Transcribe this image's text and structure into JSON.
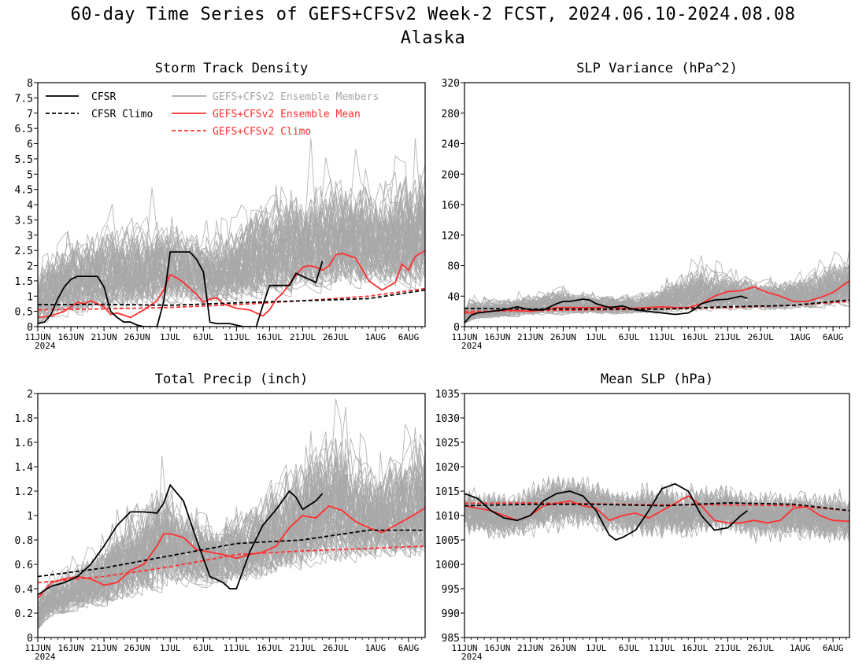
{
  "page": {
    "title_line1": "60-day Time Series of GEFS+CFSv2 Week-2 FCST, 2024.06.10-2024.08.08",
    "title_line2": "Alaska"
  },
  "x_axis": {
    "tick_labels": [
      "11JUN",
      "16JUN",
      "21JUN",
      "26JUN",
      "1JUL",
      "6JUL",
      "11JUL",
      "16JUL",
      "21JUL",
      "26JUL",
      "1AUG",
      "6AUG"
    ],
    "tick_days": [
      0,
      5,
      10,
      15,
      20,
      25,
      30,
      35,
      40,
      45,
      51,
      56
    ],
    "year_label": "2024",
    "day_range": [
      0,
      58.5
    ]
  },
  "legend": {
    "cfsr": "CFSR",
    "cfsr_climo": "CFSR Climo",
    "members": "GEFS+CFSv2 Ensemble Members",
    "ens_mean": "GEFS+CFSv2 Ensemble Mean",
    "gefs_climo": "GEFS+CFSv2 Climo"
  },
  "colors": {
    "cfsr": "#000000",
    "members": "#a8a8a8",
    "ens_mean": "#ff3030",
    "gefs_climo": "#ff3030"
  },
  "chart_data": [
    {
      "type": "line",
      "title": "Storm Track Density",
      "ylim": [
        0,
        8
      ],
      "yticks": [
        "0",
        "0.5",
        "1",
        "1.5",
        "2",
        "2.5",
        "3",
        "3.5",
        "4",
        "4.5",
        "5",
        "5.5",
        "6",
        "6.5",
        "7",
        "7.5",
        "8"
      ],
      "member_spread": {
        "base": [
          0.15,
          0.2,
          0.3,
          0.45,
          0.5,
          0.55,
          0.6,
          0.65,
          0.7,
          0.8,
          0.9,
          1.0,
          1.05,
          1.1,
          1.15,
          1.15,
          1.15
        ],
        "high_spread": [
          2.5,
          3.0,
          3.2,
          3.5,
          3.3,
          3.5,
          2.8,
          2.5,
          3.0,
          3.5,
          3.8,
          4.2,
          4.5,
          4.2,
          4.0,
          4.5,
          4.8
        ],
        "max": 7.2
      },
      "series": [
        {
          "name": "CFSR",
          "style": "solid",
          "color": "#000000",
          "x": [
            0,
            1,
            2,
            3,
            4,
            5,
            6,
            7,
            8,
            9,
            10,
            11,
            12,
            13,
            14,
            15,
            16,
            17,
            18,
            19,
            20,
            21,
            22,
            23,
            24,
            25,
            26,
            27,
            28,
            29,
            30,
            31,
            32,
            33,
            34,
            35,
            36,
            37,
            38,
            39,
            40,
            41,
            42,
            43
          ],
          "y": [
            0.1,
            0.15,
            0.4,
            0.9,
            1.3,
            1.55,
            1.65,
            1.65,
            1.65,
            1.65,
            1.3,
            0.5,
            0.3,
            0.15,
            0.15,
            0.05,
            0.0,
            0.0,
            0.0,
            0.8,
            2.45,
            2.45,
            2.45,
            2.45,
            2.2,
            1.8,
            0.15,
            0.1,
            0.1,
            0.1,
            0.05,
            0.0,
            0.0,
            0.0,
            0.7,
            1.35,
            1.35,
            1.35,
            1.35,
            1.75,
            1.65,
            1.55,
            1.45,
            2.15
          ]
        },
        {
          "name": "CFSR Climo",
          "style": "dashed",
          "color": "#000000",
          "x": [
            0,
            10,
            20,
            30,
            40,
            50,
            58.5
          ],
          "y": [
            0.72,
            0.73,
            0.7,
            0.78,
            0.85,
            0.92,
            1.2
          ]
        },
        {
          "name": "GEFS+CFSv2 Ensemble Mean",
          "style": "solid",
          "color": "#ff3030",
          "x": [
            0,
            2,
            4,
            6,
            7,
            8,
            9,
            10,
            11,
            12,
            14,
            16,
            18,
            19,
            20,
            21,
            22,
            23,
            24,
            25,
            26,
            27,
            28,
            30,
            32,
            34,
            35,
            36,
            37,
            38,
            40,
            41,
            42,
            43,
            44,
            45,
            46,
            48,
            50,
            52,
            54,
            55,
            56,
            57,
            58.5
          ],
          "y": [
            0.3,
            0.35,
            0.5,
            0.8,
            0.75,
            0.85,
            0.75,
            0.65,
            0.4,
            0.45,
            0.3,
            0.55,
            0.85,
            1.2,
            1.7,
            1.6,
            1.45,
            1.25,
            1.05,
            0.8,
            0.9,
            0.95,
            0.75,
            0.6,
            0.55,
            0.35,
            0.55,
            0.9,
            1.1,
            1.4,
            1.95,
            2.0,
            1.95,
            1.85,
            2.0,
            2.35,
            2.4,
            2.25,
            1.5,
            1.2,
            1.45,
            2.05,
            1.85,
            2.3,
            2.5
          ]
        },
        {
          "name": "GEFS+CFSv2 Climo",
          "style": "dashed",
          "color": "#ff3030",
          "x": [
            0,
            10,
            20,
            30,
            40,
            50,
            58.5
          ],
          "y": [
            0.55,
            0.58,
            0.63,
            0.72,
            0.85,
            1.0,
            1.25
          ]
        }
      ]
    },
    {
      "type": "line",
      "title": "SLP Variance (hPa^2)",
      "ylim": [
        0,
        320
      ],
      "yticks": [
        "0",
        "40",
        "80",
        "120",
        "160",
        "200",
        "240",
        "280",
        "320"
      ],
      "member_spread": {
        "base": [
          8,
          10,
          12,
          14,
          15,
          15,
          15,
          15,
          16,
          17,
          18,
          18,
          19,
          20,
          21,
          22,
          23
        ],
        "high_spread": [
          35,
          30,
          30,
          35,
          40,
          35,
          30,
          30,
          40,
          60,
          70,
          60,
          45,
          45,
          55,
          70,
          80
        ],
        "max": 170
      },
      "series": [
        {
          "name": "CFSR",
          "style": "solid",
          "color": "#000000",
          "x": [
            0,
            1,
            2,
            4,
            6,
            8,
            10,
            12,
            14,
            15,
            16,
            18,
            19,
            20,
            22,
            24,
            26,
            28,
            30,
            32,
            34,
            35,
            36,
            38,
            40,
            42,
            43
          ],
          "y": [
            5,
            15,
            18,
            20,
            22,
            26,
            22,
            22,
            30,
            33,
            33,
            36,
            35,
            30,
            25,
            27,
            22,
            20,
            18,
            16,
            18,
            23,
            30,
            35,
            36,
            40,
            37
          ]
        },
        {
          "name": "CFSR Climo",
          "style": "dashed",
          "color": "#000000",
          "x": [
            0,
            10,
            20,
            30,
            40,
            50,
            58.5
          ],
          "y": [
            24,
            23,
            23,
            23,
            26,
            28,
            35
          ]
        },
        {
          "name": "GEFS+CFSv2 Ensemble Mean",
          "style": "solid",
          "color": "#ff3030",
          "x": [
            0,
            2,
            4,
            6,
            8,
            10,
            12,
            14,
            16,
            18,
            20,
            22,
            24,
            26,
            28,
            30,
            32,
            34,
            36,
            38,
            40,
            42,
            44,
            46,
            48,
            50,
            52,
            54,
            56,
            58.5
          ],
          "y": [
            18,
            18,
            20,
            22,
            21,
            20,
            22,
            25,
            25,
            25,
            25,
            26,
            24,
            24,
            25,
            26,
            25,
            25,
            30,
            40,
            46,
            47,
            52,
            45,
            40,
            33,
            33,
            38,
            45,
            60
          ]
        },
        {
          "name": "GEFS+CFSv2 Climo",
          "style": "dashed",
          "color": "#ff3030",
          "x": [
            0,
            10,
            20,
            30,
            40,
            50,
            58.5
          ],
          "y": [
            20,
            21,
            22,
            23,
            25,
            28,
            33
          ]
        }
      ]
    },
    {
      "type": "line",
      "title": "Total Precip (inch)",
      "ylim": [
        0,
        2
      ],
      "yticks": [
        "0",
        "0.2",
        "0.4",
        "0.6",
        "0.8",
        "1",
        "1.2",
        "1.4",
        "1.6",
        "1.8",
        "2"
      ],
      "member_spread": {
        "base": [
          0.12,
          0.18,
          0.22,
          0.25,
          0.3,
          0.35,
          0.38,
          0.4,
          0.42,
          0.45,
          0.48,
          0.52,
          0.55,
          0.58,
          0.6,
          0.6,
          0.62
        ],
        "high_spread": [
          0.4,
          0.45,
          0.5,
          0.7,
          0.9,
          1.1,
          0.8,
          0.6,
          0.7,
          0.8,
          1.0,
          1.2,
          1.3,
          1.1,
          0.9,
          1.0,
          1.2
        ],
        "max": 2.0
      },
      "series": [
        {
          "name": "CFSR",
          "style": "solid",
          "color": "#000000",
          "x": [
            0,
            2,
            4,
            6,
            8,
            10,
            12,
            14,
            16,
            18,
            19,
            20,
            22,
            24,
            26,
            28,
            29,
            30,
            32,
            34,
            36,
            38,
            39,
            40,
            42,
            43
          ],
          "y": [
            0.35,
            0.42,
            0.45,
            0.5,
            0.6,
            0.75,
            0.92,
            1.03,
            1.03,
            1.02,
            1.1,
            1.25,
            1.12,
            0.8,
            0.5,
            0.45,
            0.4,
            0.4,
            0.7,
            0.92,
            1.05,
            1.2,
            1.15,
            1.05,
            1.12,
            1.18
          ]
        },
        {
          "name": "CFSR Climo",
          "style": "dashed",
          "color": "#000000",
          "x": [
            0,
            10,
            20,
            30,
            40,
            50,
            58.5
          ],
          "y": [
            0.5,
            0.57,
            0.67,
            0.77,
            0.8,
            0.88,
            0.88
          ]
        },
        {
          "name": "GEFS+CFSv2 Ensemble Mean",
          "style": "solid",
          "color": "#ff3030",
          "x": [
            0,
            2,
            4,
            6,
            8,
            10,
            12,
            14,
            16,
            18,
            19,
            20,
            22,
            24,
            26,
            28,
            30,
            32,
            34,
            36,
            38,
            40,
            42,
            44,
            46,
            48,
            50,
            52,
            54,
            56,
            58.5
          ],
          "y": [
            0.32,
            0.45,
            0.48,
            0.5,
            0.48,
            0.43,
            0.45,
            0.55,
            0.6,
            0.75,
            0.85,
            0.85,
            0.82,
            0.72,
            0.7,
            0.68,
            0.65,
            0.68,
            0.7,
            0.75,
            0.9,
            1.0,
            0.98,
            1.08,
            1.04,
            0.95,
            0.9,
            0.86,
            0.92,
            0.98,
            1.06
          ]
        },
        {
          "name": "GEFS+CFSv2 Climo",
          "style": "dashed",
          "color": "#ff3030",
          "x": [
            0,
            10,
            20,
            30,
            40,
            50,
            58.5
          ],
          "y": [
            0.45,
            0.5,
            0.58,
            0.68,
            0.71,
            0.73,
            0.75
          ]
        }
      ]
    },
    {
      "type": "line",
      "title": "Mean SLP (hPa)",
      "ylim": [
        985,
        1035
      ],
      "yticks": [
        "985",
        "990",
        "995",
        "1000",
        "1005",
        "1010",
        "1015",
        "1020",
        "1025",
        "1030",
        "1035"
      ],
      "member_spread": {
        "base": [
          1005,
          1004,
          1004,
          1005,
          1006,
          1006,
          1005,
          1004,
          1004,
          1004,
          1005,
          1005,
          1004,
          1004,
          1004,
          1003,
          1003
        ],
        "high_spread": [
          12,
          12,
          12,
          13,
          14,
          13,
          12,
          13,
          14,
          13,
          12,
          12,
          12,
          12,
          12,
          13,
          13
        ],
        "max": 1022
      },
      "series": [
        {
          "name": "CFSR",
          "style": "solid",
          "color": "#000000",
          "x": [
            0,
            2,
            4,
            6,
            8,
            10,
            12,
            14,
            16,
            18,
            20,
            22,
            23,
            24,
            26,
            28,
            30,
            32,
            34,
            36,
            38,
            40,
            42,
            43
          ],
          "y": [
            1014.5,
            1013.5,
            1011,
            1009.5,
            1009,
            1010,
            1013,
            1014.5,
            1015,
            1014,
            1011,
            1006,
            1005,
            1005.5,
            1007,
            1011,
            1015.5,
            1016.5,
            1015,
            1010,
            1007,
            1007.5,
            1010,
            1011
          ]
        },
        {
          "name": "CFSR Climo",
          "style": "dashed",
          "color": "#000000",
          "x": [
            0,
            10,
            20,
            30,
            40,
            50,
            58.5
          ],
          "y": [
            1012,
            1012.3,
            1012.3,
            1012,
            1012.6,
            1012.3,
            1011
          ]
        },
        {
          "name": "GEFS+CFSv2 Ensemble Mean",
          "style": "solid",
          "color": "#ff3030",
          "x": [
            0,
            2,
            4,
            6,
            8,
            10,
            12,
            14,
            16,
            18,
            20,
            22,
            24,
            26,
            28,
            30,
            32,
            34,
            36,
            38,
            40,
            42,
            44,
            46,
            48,
            50,
            52,
            54,
            56,
            58.5
          ],
          "y": [
            1012,
            1011.5,
            1011,
            1010,
            1009,
            1010,
            1012,
            1012.5,
            1013,
            1012,
            1011.5,
            1009,
            1010,
            1010.5,
            1009.5,
            1011,
            1012.5,
            1014,
            1012,
            1009,
            1008.5,
            1008.5,
            1009,
            1008.5,
            1009,
            1011.5,
            1011.8,
            1010,
            1009,
            1008.8
          ]
        },
        {
          "name": "GEFS+CFSv2 Climo",
          "style": "dashed",
          "color": "#ff3030",
          "x": [
            0,
            10,
            20,
            30,
            40,
            50,
            58.5
          ],
          "y": [
            1012.5,
            1012.6,
            1012.4,
            1012.2,
            1012.2,
            1012,
            1011
          ]
        }
      ]
    }
  ]
}
